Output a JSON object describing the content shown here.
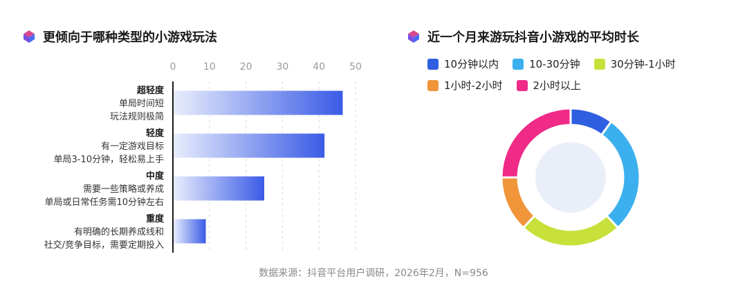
{
  "left_panel": {
    "title": "更倾向于哪种类型的小游戏玩法"
  },
  "right_panel": {
    "title": "近一个月来游玩抖音小游戏的平均时长"
  },
  "source": "数据来源：抖音平台用户调研，2026年2月，N=956",
  "colors": {
    "bar_gradient_start": "#e8edfc",
    "bar_gradient_end": "#3a5be6",
    "logo_top": "#d9468f",
    "logo_left": "#7b4fe0",
    "logo_right": "#4a6cf0"
  },
  "chart_data": [
    {
      "type": "bar",
      "orientation": "horizontal",
      "title": "更倾向于哪种类型的小游戏玩法",
      "xlim": [
        0,
        50
      ],
      "ticks": [
        0,
        10,
        20,
        30,
        40,
        50
      ],
      "grid": true,
      "categories": [
        {
          "name": "超轻度",
          "desc": [
            "单局时间短",
            "玩法规则极简"
          ]
        },
        {
          "name": "轻度",
          "desc": [
            "有一定游戏目标",
            "单局3-10分钟，轻松易上手"
          ]
        },
        {
          "name": "中度",
          "desc": [
            "需要一些策略或养成",
            "单局或日常任务需10分钟左右"
          ]
        },
        {
          "name": "重度",
          "desc": [
            "有明确的长期养成线和",
            "社交/竞争目标，需要定期投入"
          ]
        }
      ],
      "values": [
        46.5,
        41.5,
        25,
        9
      ]
    },
    {
      "type": "pie",
      "variant": "donut",
      "title": "近一个月来游玩抖音小游戏的平均时长",
      "legend_position": "top",
      "labels": [
        "10分钟以内",
        "10-30分钟",
        "30分钟-1小时",
        "1小时-2小时",
        "2小时以上"
      ],
      "values": [
        10,
        28,
        24,
        13,
        25
      ],
      "colors": [
        "#2f5ee0",
        "#3cb0ee",
        "#c8e03a",
        "#f0953a",
        "#f02a87"
      ]
    }
  ]
}
